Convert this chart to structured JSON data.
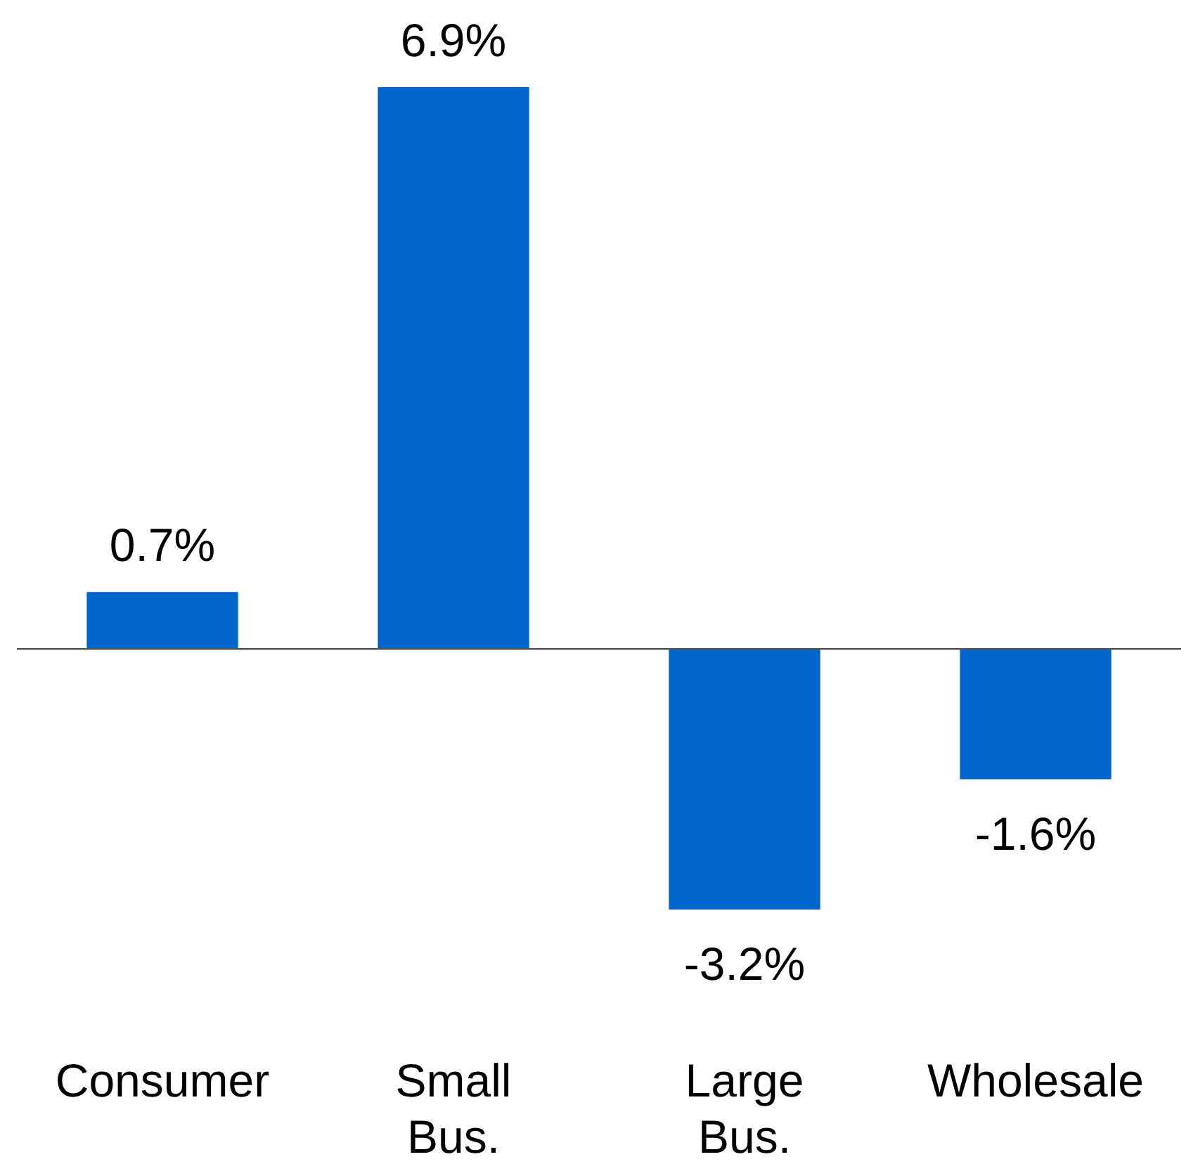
{
  "chart_data": {
    "type": "bar",
    "categories": [
      "Consumer",
      "Small Bus.",
      "Large Bus.",
      "Wholesale"
    ],
    "values": [
      0.7,
      6.9,
      -3.2,
      -1.6
    ],
    "value_labels": [
      "0.7%",
      "6.9%",
      "-3.2%",
      "-1.6%"
    ],
    "color": "#0066cc"
  }
}
